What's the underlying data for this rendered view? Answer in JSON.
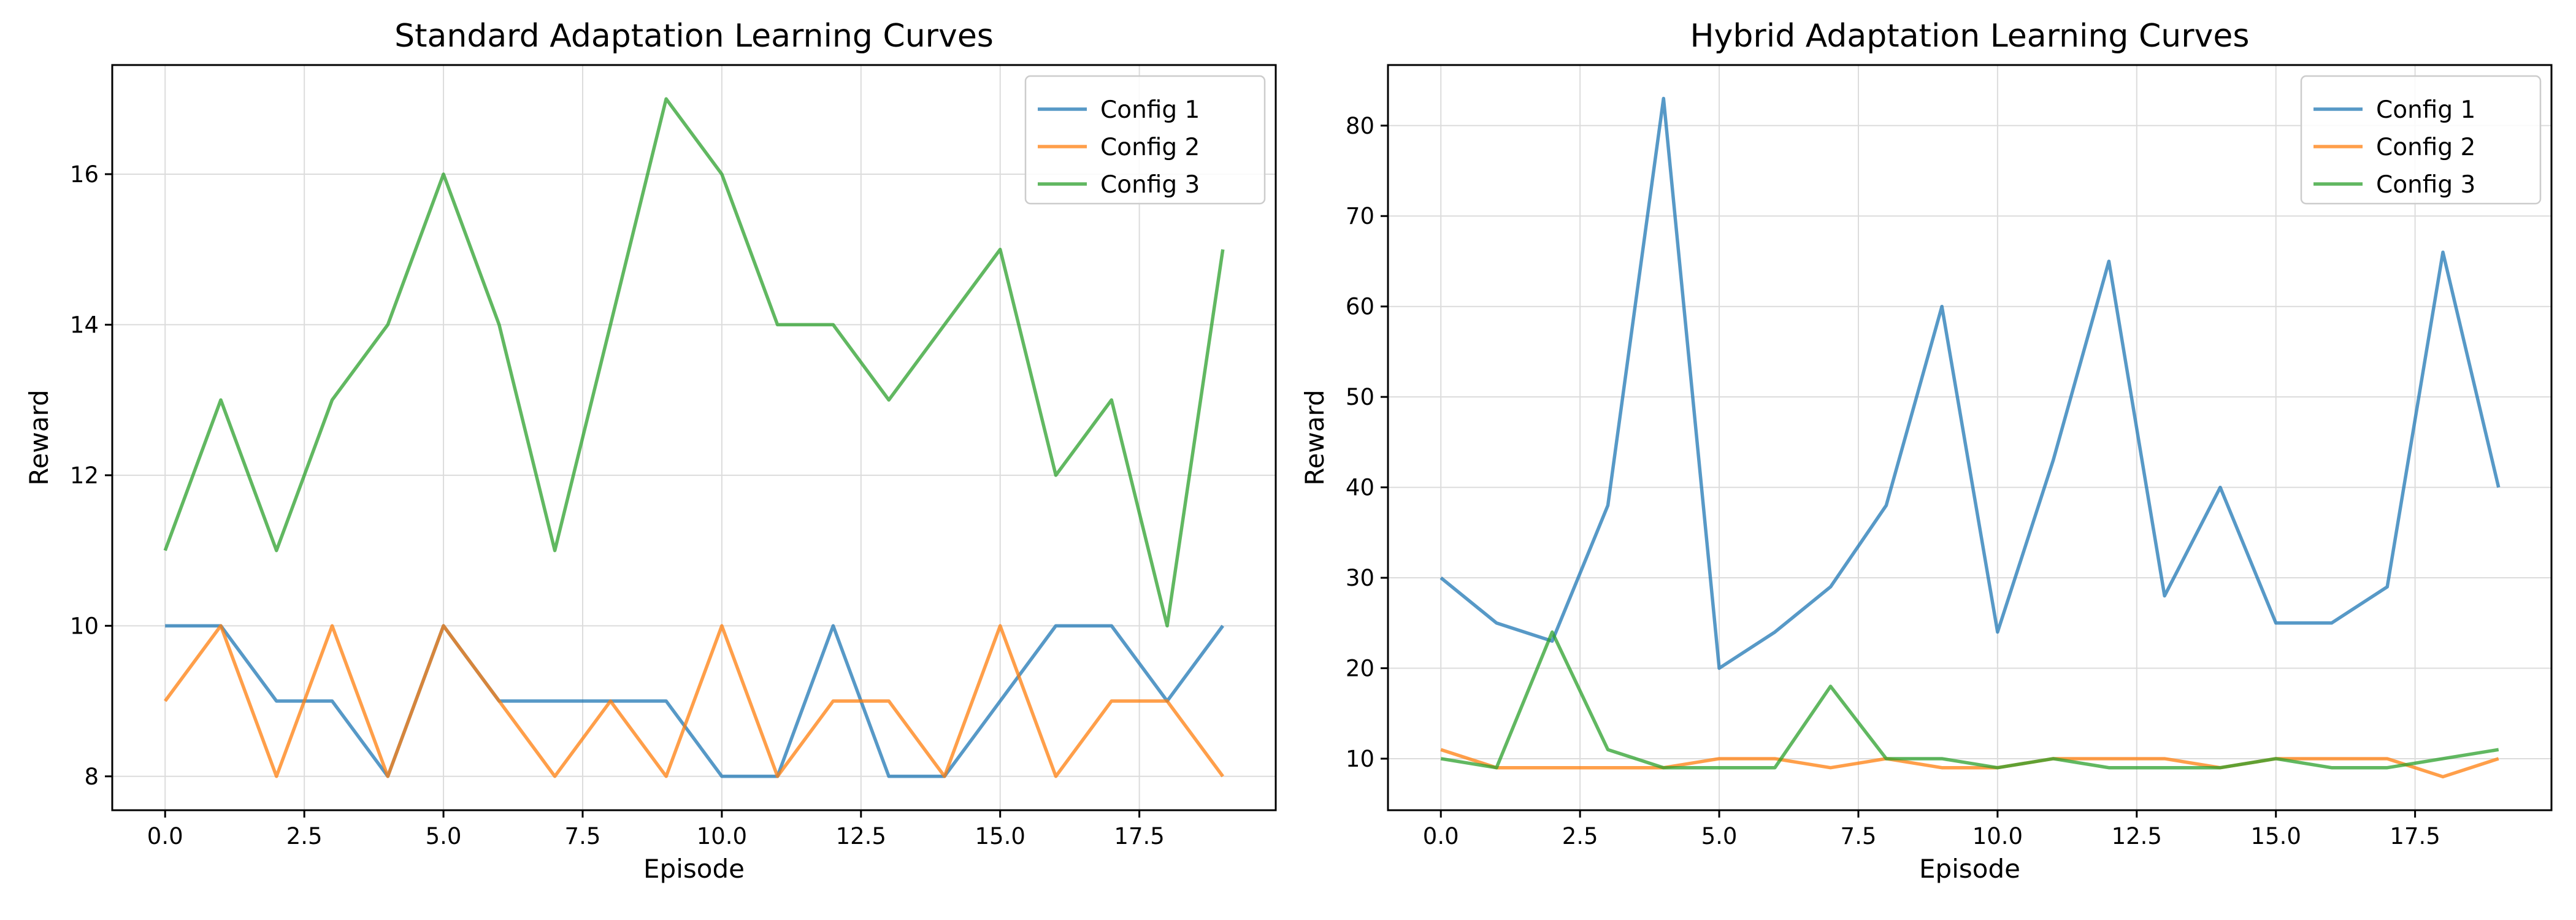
{
  "chart_data": [
    {
      "type": "line",
      "title": "Standard Adaptation Learning Curves",
      "xlabel": "Episode",
      "ylabel": "Reward",
      "xlim": [
        -0.95,
        19.95
      ],
      "ylim": [
        7.55,
        17.45
      ],
      "xticks": [
        0.0,
        2.5,
        5.0,
        7.5,
        10.0,
        12.5,
        15.0,
        17.5
      ],
      "xtick_labels": [
        "0.0",
        "2.5",
        "5.0",
        "7.5",
        "10.0",
        "12.5",
        "15.0",
        "17.5"
      ],
      "yticks": [
        8,
        10,
        12,
        14,
        16
      ],
      "ytick_labels": [
        "8",
        "10",
        "12",
        "14",
        "16"
      ],
      "grid": true,
      "legend_position": "top-right",
      "x": [
        0,
        1,
        2,
        3,
        4,
        5,
        6,
        7,
        8,
        9,
        10,
        11,
        12,
        13,
        14,
        15,
        16,
        17,
        18,
        19
      ],
      "series": [
        {
          "name": "Config 1",
          "color": "#1f77b4",
          "values": [
            10,
            10,
            9,
            9,
            8,
            10,
            9,
            9,
            9,
            9,
            8,
            8,
            10,
            8,
            8,
            9,
            10,
            10,
            9,
            10
          ]
        },
        {
          "name": "Config 2",
          "color": "#ff7f0e",
          "values": [
            9,
            10,
            8,
            10,
            8,
            10,
            9,
            8,
            9,
            8,
            10,
            8,
            9,
            9,
            8,
            10,
            8,
            9,
            9,
            8
          ]
        },
        {
          "name": "Config 3",
          "color": "#2ca02c",
          "values": [
            11,
            13,
            11,
            13,
            14,
            16,
            14,
            11,
            14,
            17,
            16,
            14,
            14,
            13,
            14,
            15,
            12,
            13,
            10,
            15
          ]
        }
      ]
    },
    {
      "type": "line",
      "title": "Hybrid Adaptation Learning Curves",
      "xlabel": "Episode",
      "ylabel": "Reward",
      "xlim": [
        -0.95,
        19.95
      ],
      "ylim": [
        4.3,
        86.7
      ],
      "xticks": [
        0.0,
        2.5,
        5.0,
        7.5,
        10.0,
        12.5,
        15.0,
        17.5
      ],
      "xtick_labels": [
        "0.0",
        "2.5",
        "5.0",
        "7.5",
        "10.0",
        "12.5",
        "15.0",
        "17.5"
      ],
      "yticks": [
        10,
        20,
        30,
        40,
        50,
        60,
        70,
        80
      ],
      "ytick_labels": [
        "10",
        "20",
        "30",
        "40",
        "50",
        "60",
        "70",
        "80"
      ],
      "grid": true,
      "legend_position": "top-right",
      "x": [
        0,
        1,
        2,
        3,
        4,
        5,
        6,
        7,
        8,
        9,
        10,
        11,
        12,
        13,
        14,
        15,
        16,
        17,
        18,
        19
      ],
      "series": [
        {
          "name": "Config 1",
          "color": "#1f77b4",
          "values": [
            30,
            25,
            23,
            38,
            83,
            20,
            24,
            29,
            38,
            60,
            24,
            43,
            65,
            28,
            40,
            25,
            25,
            29,
            66,
            40
          ]
        },
        {
          "name": "Config 2",
          "color": "#ff7f0e",
          "values": [
            11,
            9,
            9,
            9,
            9,
            10,
            10,
            9,
            10,
            9,
            9,
            10,
            10,
            10,
            9,
            10,
            10,
            10,
            8,
            10
          ]
        },
        {
          "name": "Config 3",
          "color": "#2ca02c",
          "values": [
            10,
            9,
            24,
            11,
            9,
            9,
            9,
            18,
            10,
            10,
            9,
            10,
            9,
            9,
            9,
            10,
            9,
            9,
            10,
            11
          ]
        }
      ]
    }
  ]
}
